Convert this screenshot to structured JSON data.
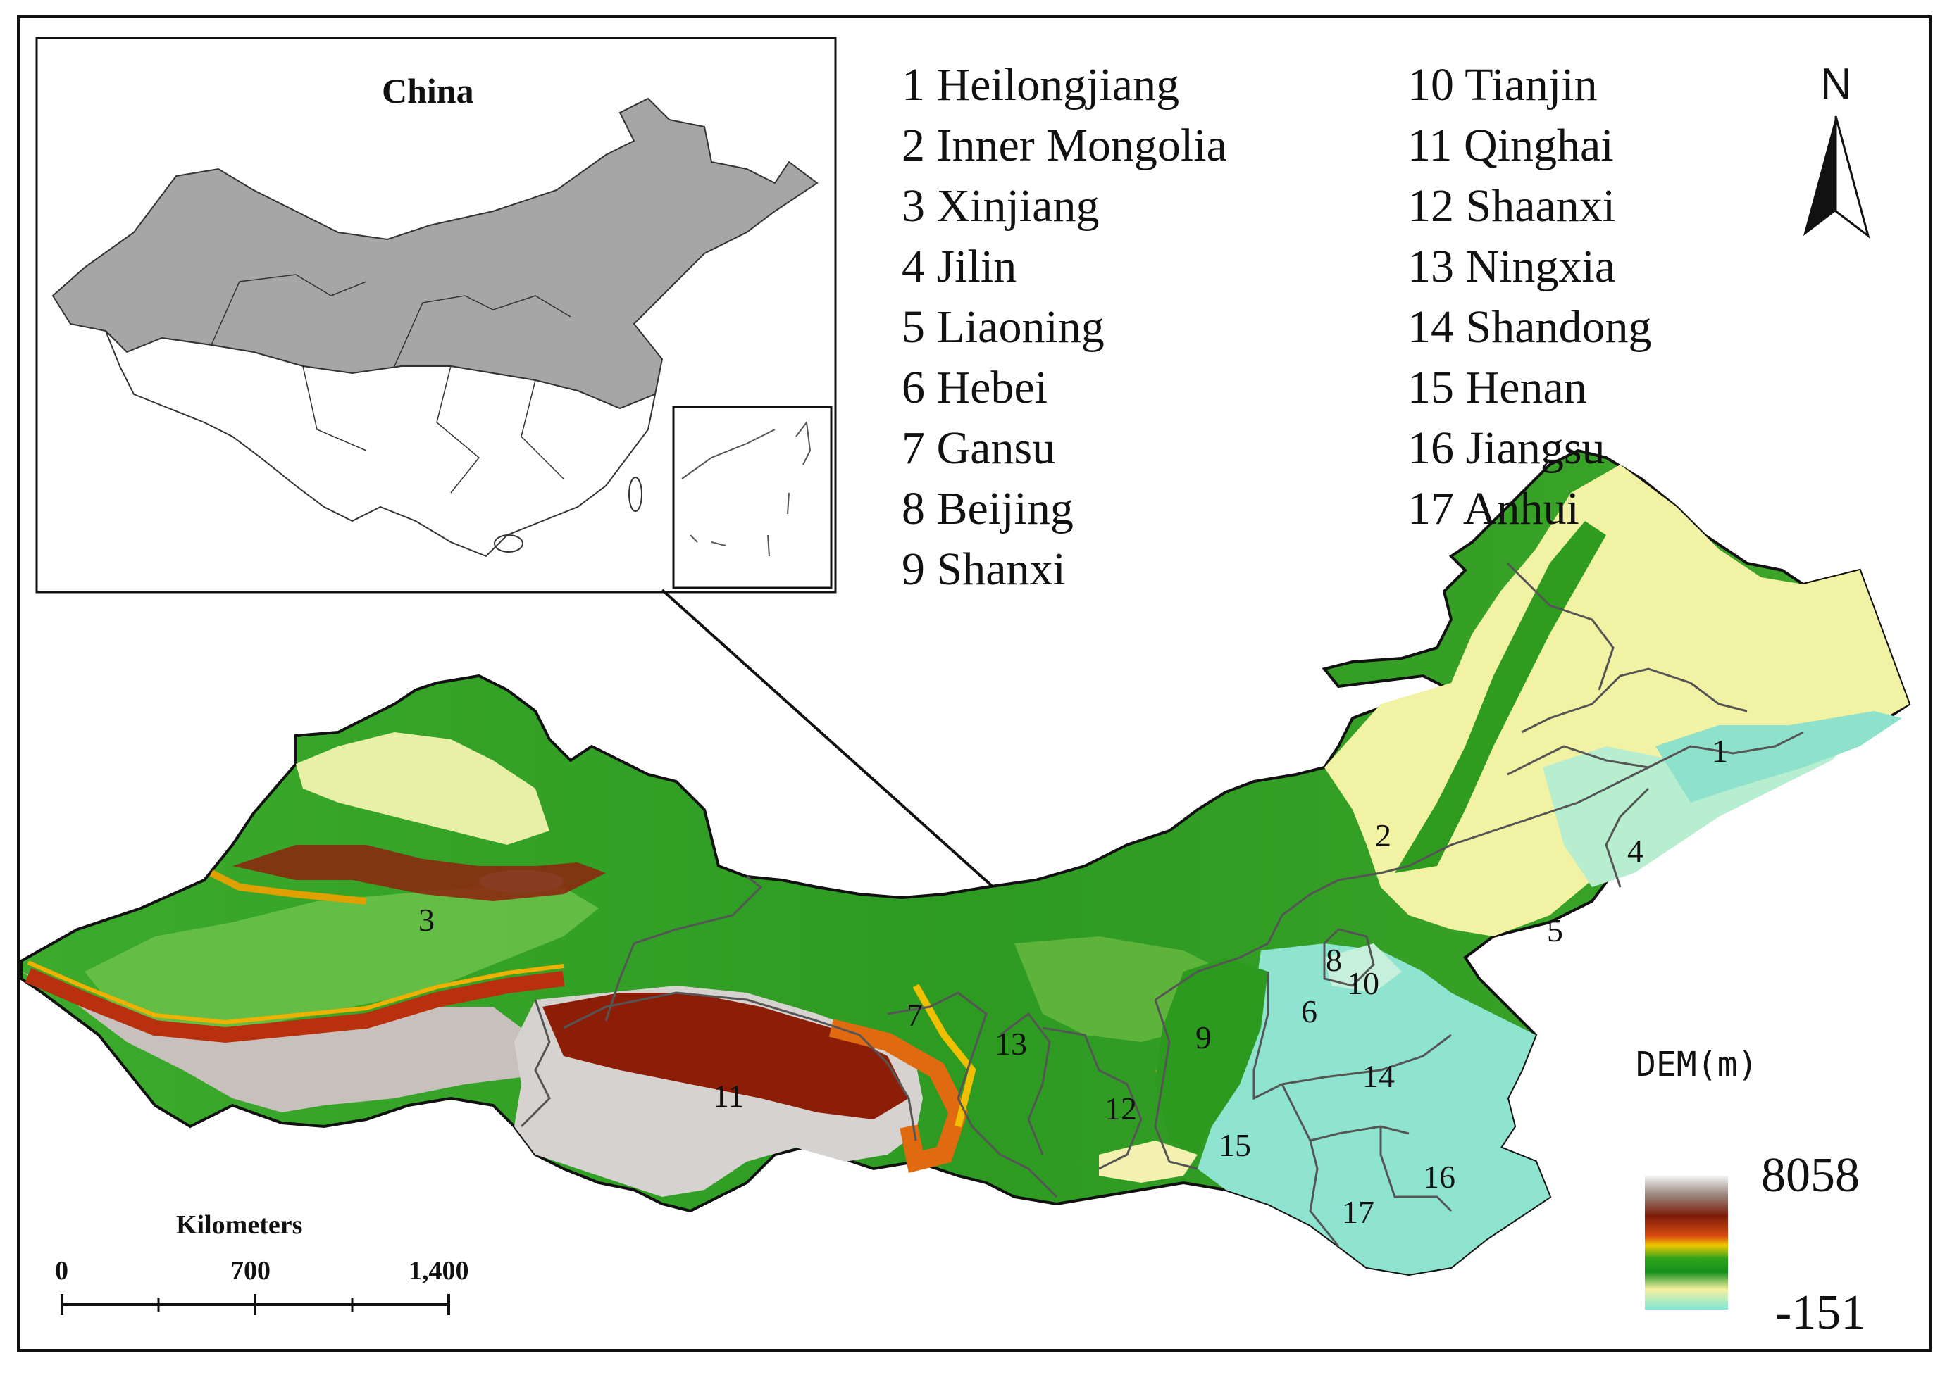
{
  "inset": {
    "title": "China"
  },
  "legend": {
    "column1": [
      "1 Heilongjiang",
      "2 Inner Mongolia",
      "3 Xinjiang",
      "4 Jilin",
      "5 Liaoning",
      "6 Hebei",
      "7 Gansu",
      "8 Beijing",
      "9 Shanxi"
    ],
    "column2": [
      "10 Tianjin",
      "11 Qinghai",
      "12 Shaanxi",
      "13 Ningxia",
      "14 Shandong",
      "15 Henan",
      "16 Jiangsu",
      "17 Anhui"
    ]
  },
  "north_arrow": {
    "label": "N"
  },
  "province_labels": {
    "p1": "1",
    "p2": "2",
    "p3": "3",
    "p4": "4",
    "p5": "5",
    "p6": "6",
    "p7": "7",
    "p8": "8",
    "p9": "9",
    "p10": "10",
    "p11": "11",
    "p12": "12",
    "p13": "13",
    "p14": "14",
    "p15": "15",
    "p16": "16",
    "p17": "17"
  },
  "scale_bar": {
    "title": "Kilometers",
    "ticks": [
      "0",
      "700",
      "1,400"
    ]
  },
  "dem_legend": {
    "title": "DEM(m)",
    "max": "8058",
    "min": "-151",
    "colors": [
      "#f2f2f2",
      "#7a1e0b",
      "#e8b800",
      "#1f9e20",
      "#7ee0d0"
    ]
  }
}
